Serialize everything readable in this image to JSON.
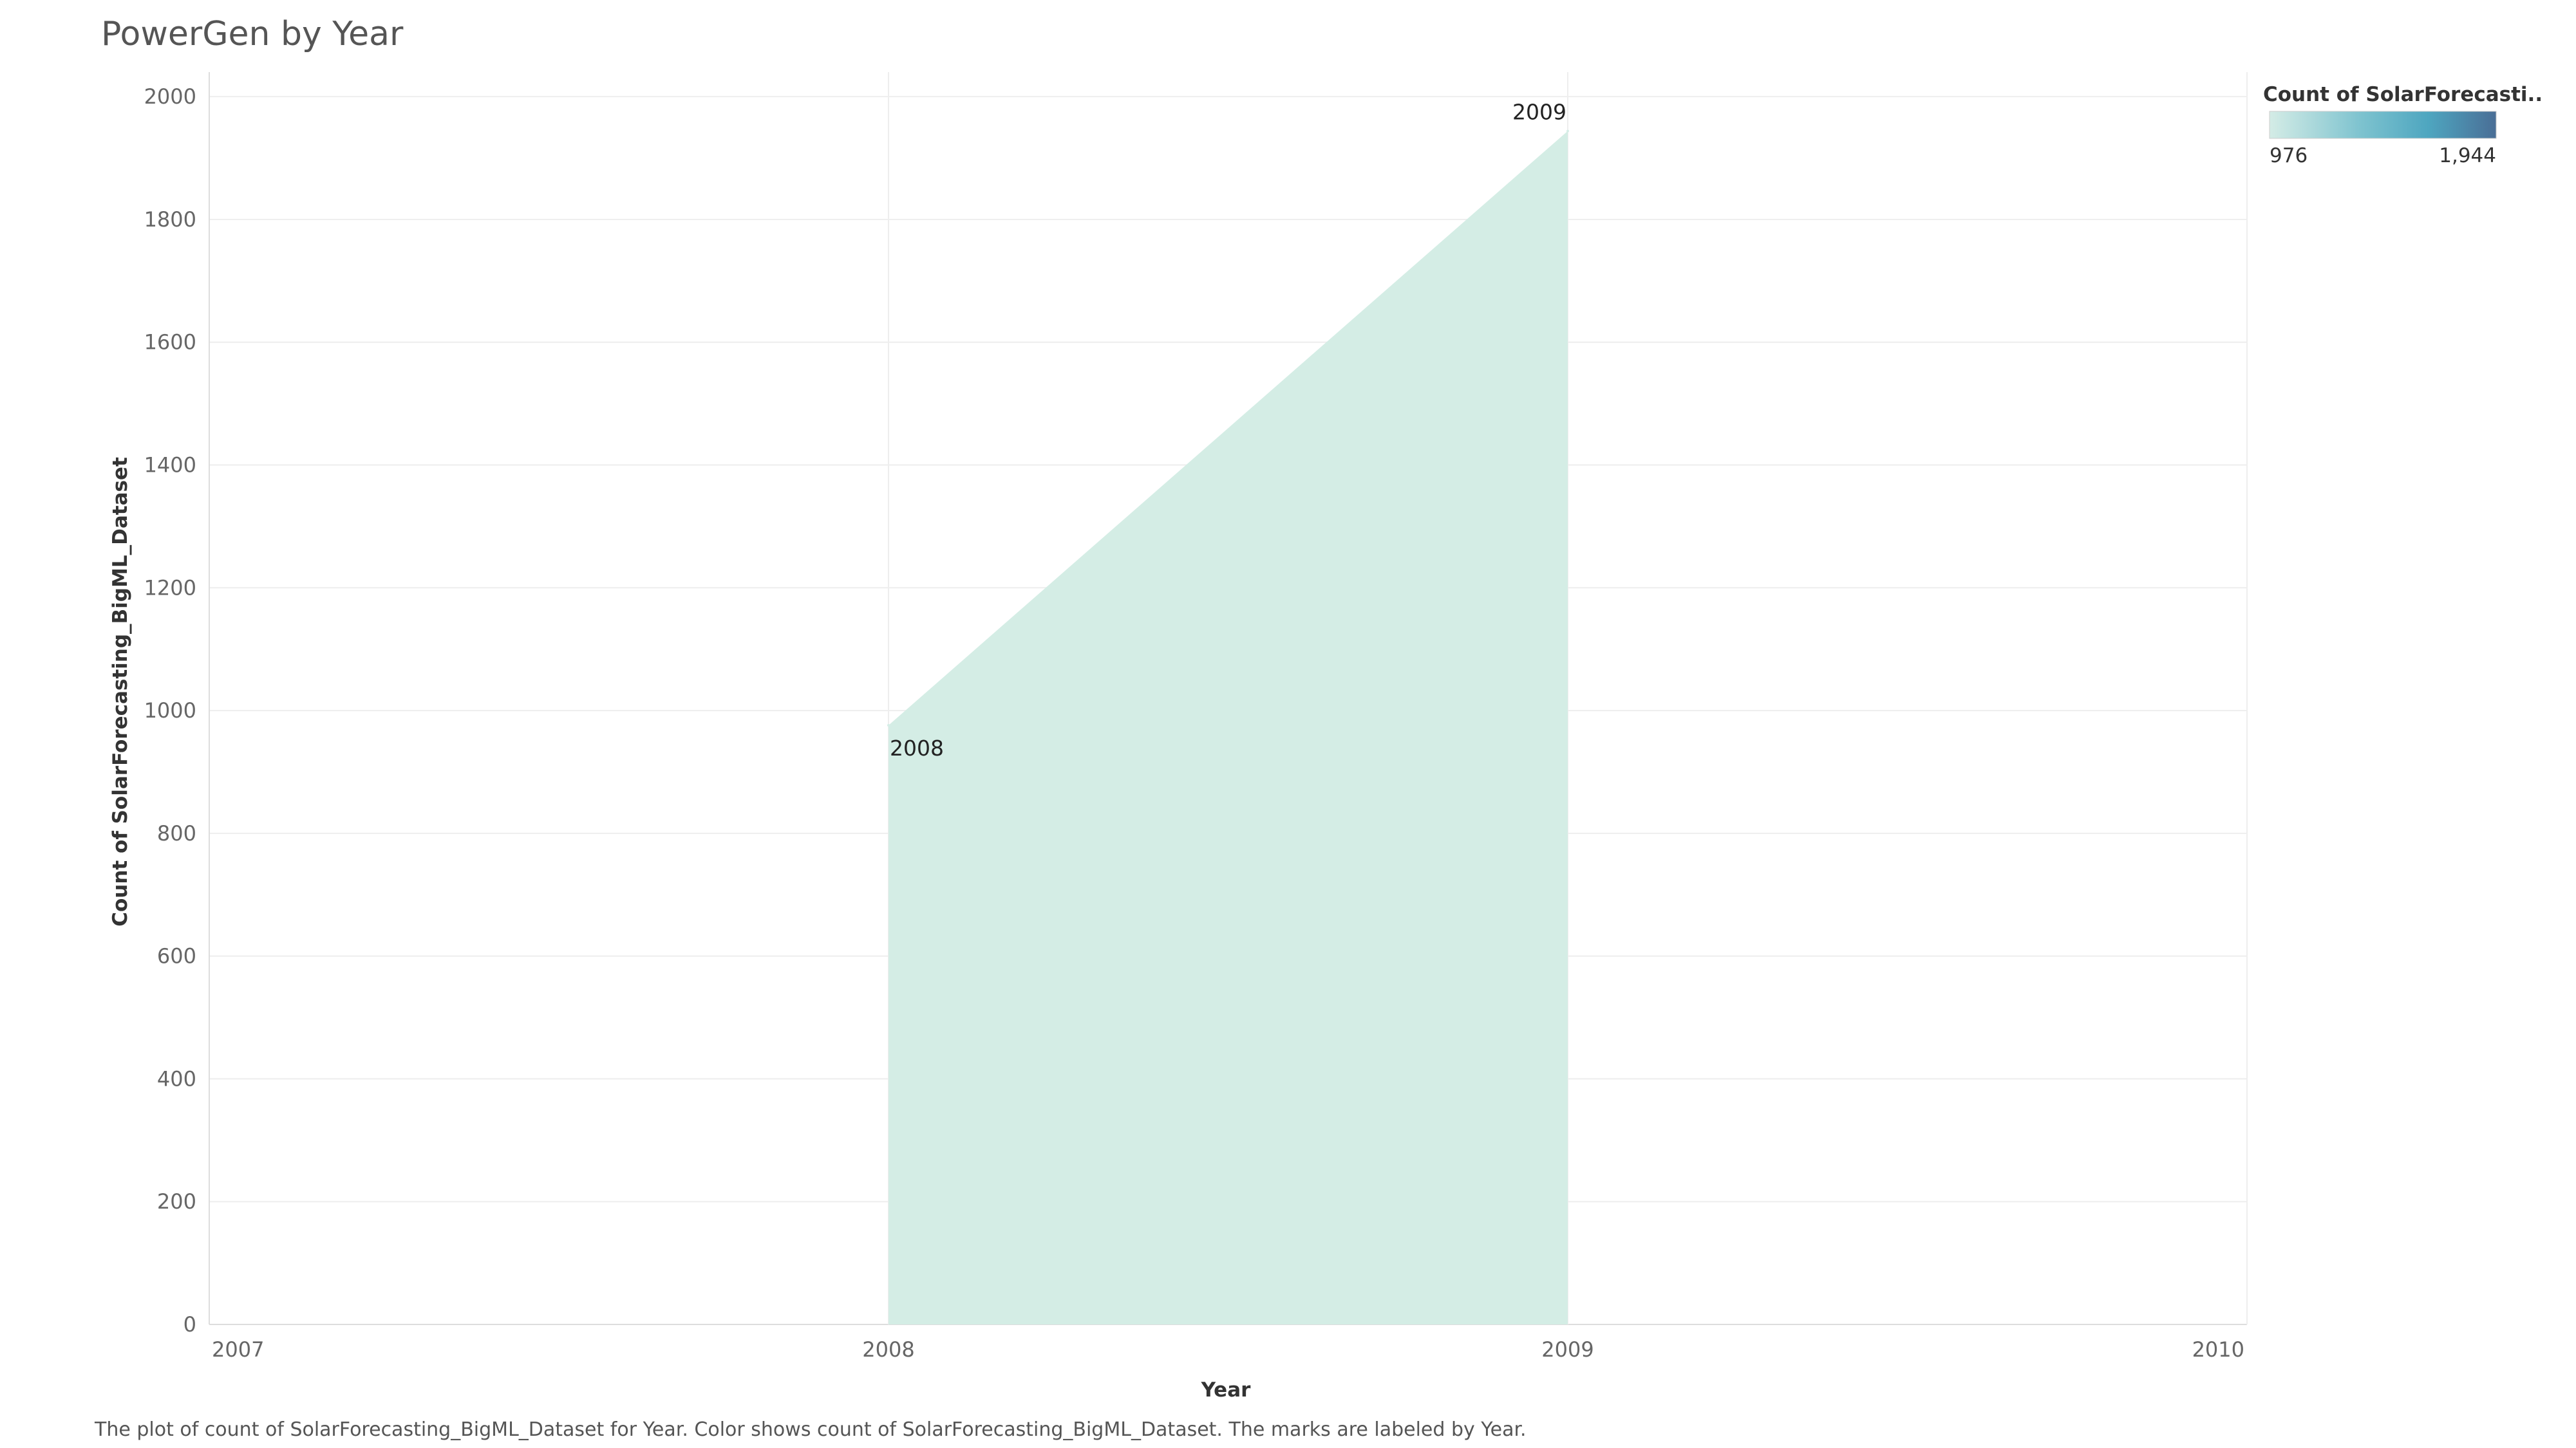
{
  "title": "PowerGen by Year",
  "caption": "The plot of count of SolarForecasting_BigML_Dataset for Year.  Color shows count of SolarForecasting_BigML_Dataset.  The marks are labeled by Year.",
  "legend": {
    "title": "Count of SolarForecasti..",
    "min_label": "976",
    "max_label": "1,944",
    "gradient_colors": [
      "#d4ece6",
      "#7ec3cf",
      "#4ea6c0",
      "#4a6e96"
    ],
    "position": "top-right"
  },
  "colors": {
    "area_fill": "#d4ede5",
    "area_highlight": "#d6eee7"
  },
  "chart_data": {
    "type": "area",
    "title": "PowerGen by Year",
    "xlabel": "Year",
    "ylabel": "Count of SolarForecasting_BigML_Dataset",
    "x_ticks": [
      "2007",
      "2008",
      "2009",
      "2010"
    ],
    "xlim": [
      2007,
      2010
    ],
    "y_ticks": [
      "0",
      "200",
      "400",
      "600",
      "800",
      "1000",
      "1200",
      "1400",
      "1600",
      "1800",
      "2000"
    ],
    "ylim": [
      0,
      2040
    ],
    "grid": true,
    "series": [
      {
        "points": [
          {
            "x": 2008,
            "y": 976,
            "label": "2008"
          },
          {
            "x": 2009,
            "y": 1944,
            "label": "2009"
          }
        ]
      }
    ]
  }
}
